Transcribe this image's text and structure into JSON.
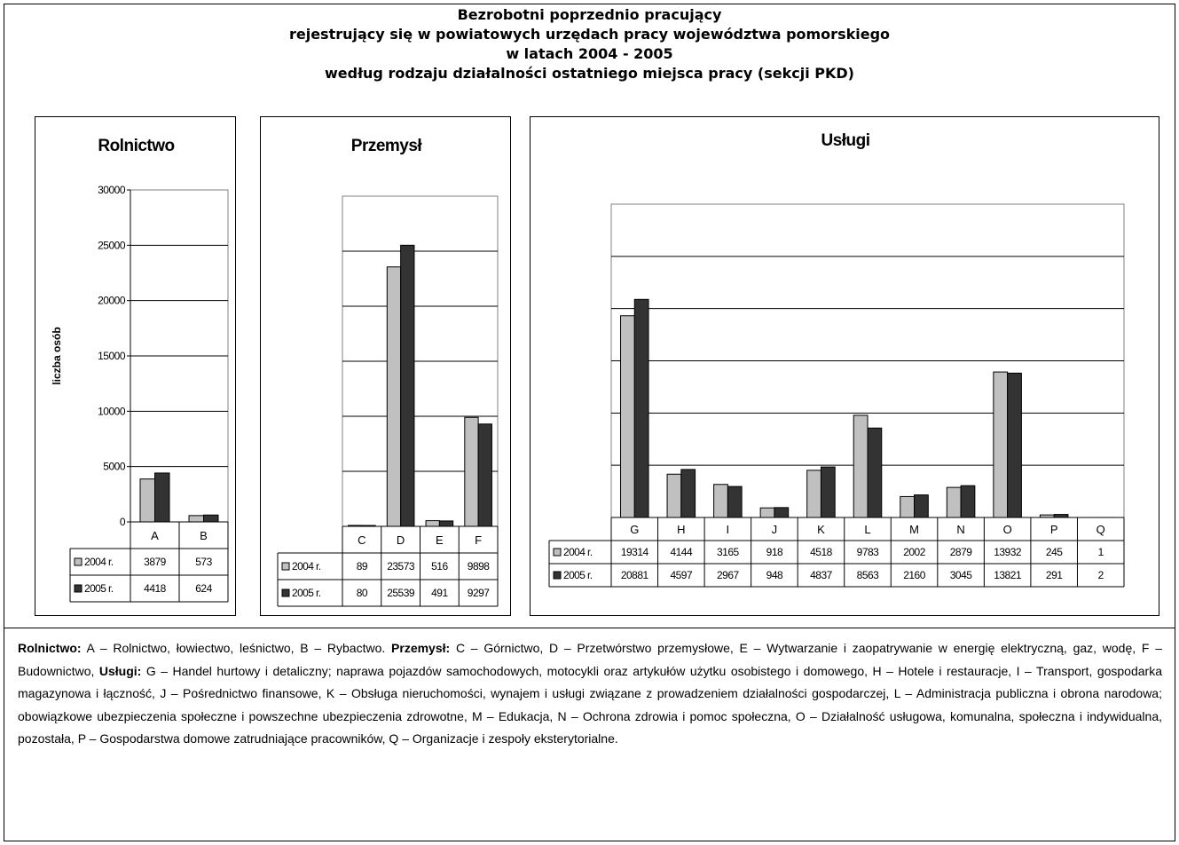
{
  "title": {
    "line1": "Bezrobotni poprzednio pracujący",
    "line2": "rejestrujący się w powiatowych urzędach pracy województwa pomorskiego",
    "line3": "w latach 2004 - 2005",
    "line4": "według rodzaju działalności ostatniego miejsca pracy (sekcji PKD)"
  },
  "colors": {
    "series_2004": "#c0c0c0",
    "series_2005": "#333333",
    "grid": "#000000"
  },
  "chart_data": [
    {
      "type": "bar",
      "title": "Rolnictwo",
      "ylabel": "liczba osób",
      "ylim": [
        0,
        30000
      ],
      "yticks": [
        "0",
        "5000",
        "10000",
        "15000",
        "20000",
        "25000",
        "30000"
      ],
      "categories": [
        "A",
        "B"
      ],
      "series": [
        {
          "name": "2004 r.",
          "values": [
            3879,
            573
          ]
        },
        {
          "name": "2005 r.",
          "values": [
            4418,
            624
          ]
        }
      ],
      "grid": true
    },
    {
      "type": "bar",
      "title": "Przemysł",
      "ylim": [
        0,
        30000
      ],
      "categories": [
        "C",
        "D",
        "E",
        "F"
      ],
      "series": [
        {
          "name": "2004 r.",
          "values": [
            89,
            23573,
            516,
            9898
          ]
        },
        {
          "name": "2005 r.",
          "values": [
            80,
            25539,
            491,
            9297
          ]
        }
      ],
      "grid": true
    },
    {
      "type": "bar",
      "title": "Usługi",
      "ylim": [
        0,
        30000
      ],
      "categories": [
        "G",
        "H",
        "I",
        "J",
        "K",
        "L",
        "M",
        "N",
        "O",
        "P",
        "Q"
      ],
      "series": [
        {
          "name": "2004 r.",
          "values": [
            19314,
            4144,
            3165,
            918,
            4518,
            9783,
            2002,
            2879,
            13932,
            245,
            1
          ]
        },
        {
          "name": "2005 r.",
          "values": [
            20881,
            4597,
            2967,
            948,
            4837,
            8563,
            2160,
            3045,
            13821,
            291,
            2
          ]
        }
      ],
      "grid": true
    }
  ],
  "legend": {
    "rolnictwo_label": "Rolnictwo:",
    "rolnictwo_text": " A – Rolnictwo, łowiectwo, leśnictwo, B – Rybactwo. ",
    "przemysl_label": "Przemysł:",
    "przemysl_text": " C – Górnictwo, D – Przetwórstwo przemysłowe, E – Wytwarzanie i zaopatrywanie w energię elektryczną, gaz, wodę, F – Budownictwo, ",
    "uslugi_label": "Usługi:",
    "uslugi_text": " G – Handel hurtowy i detaliczny; naprawa pojazdów samochodowych, motocykli oraz artykułów użytku osobistego i domowego, H – Hotele i restauracje, I – Transport, gospodarka magazynowa i łączność, J – Pośrednictwo finansowe, K – Obsługa nieruchomości, wynajem i usługi związane z prowadzeniem działalności gospodarczej, L – Administracja publiczna i obrona narodowa; obowiązkowe ubezpieczenia społeczne i powszechne ubezpieczenia zdrowotne, M – Edukacja, N – Ochrona zdrowia i pomoc społeczna, O – Działalność usługowa, komunalna, społeczna i indywidualna, pozostała, P – Gospodarstwa domowe zatrudniające pracowników, Q – Organizacje i zespoły eksterytorialne."
  }
}
